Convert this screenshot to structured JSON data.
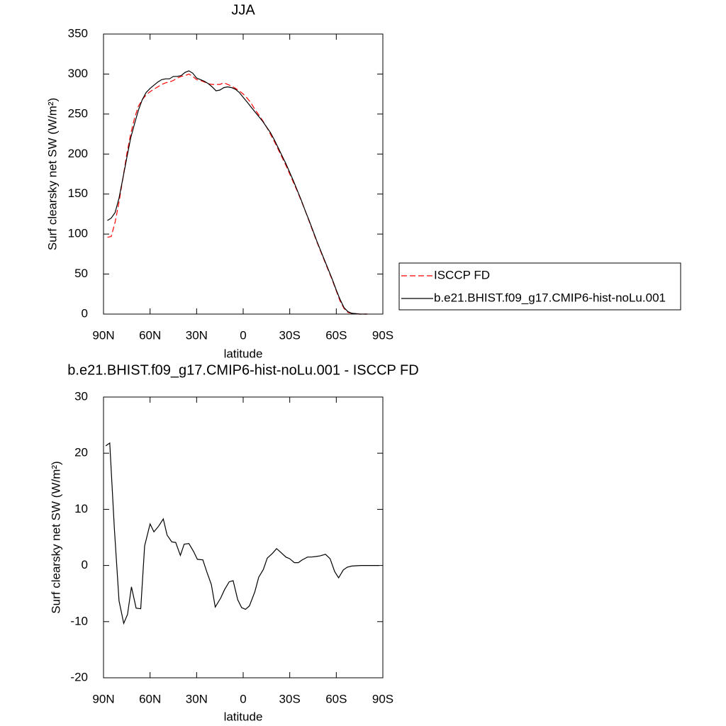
{
  "chart_data": [
    {
      "type": "line",
      "title": "JJA",
      "xlabel": "latitude",
      "ylabel": "Surf clearsky net SW (W/m²)",
      "xlim": [
        90,
        -90
      ],
      "xticks": [
        {
          "value": 90,
          "label": "90N"
        },
        {
          "value": 60,
          "label": "60N"
        },
        {
          "value": 30,
          "label": "30N"
        },
        0,
        {
          "value": -30,
          "label": "30S"
        },
        {
          "value": -60,
          "label": "60S"
        },
        {
          "value": -90,
          "label": "90S"
        }
      ],
      "ylim": [
        0,
        350
      ],
      "yticks": [
        0,
        50,
        100,
        150,
        200,
        250,
        300,
        350
      ],
      "legend": "right",
      "x": [
        87.5,
        85,
        82.5,
        80,
        77.5,
        75,
        72.5,
        70,
        67.5,
        65,
        62.5,
        60,
        57.5,
        55,
        52.5,
        50,
        47.5,
        45,
        42.5,
        40,
        37.5,
        35,
        32.5,
        30,
        27.5,
        25,
        22.5,
        20,
        17.5,
        15,
        12.5,
        10,
        7.5,
        5,
        2.5,
        0,
        -2.5,
        -5,
        -7.5,
        -10,
        -12.5,
        -15,
        -17.5,
        -20,
        -22.5,
        -25,
        -27.5,
        -30,
        -32.5,
        -35,
        -37.5,
        -40,
        -42.5,
        -45,
        -47.5,
        -50,
        -52.5,
        -55,
        -57.5,
        -60,
        -62.5,
        -65,
        -67.5,
        -70,
        -72.5,
        -75,
        -77.5,
        -80
      ],
      "series": [
        {
          "name": "ISCCP FD",
          "color": "#ff0000",
          "line_style": "dashed",
          "values": [
            96,
            97,
            115,
            140,
            170,
            200,
            225,
            245,
            260,
            268,
            274,
            278,
            281,
            284,
            287,
            289,
            290,
            292,
            295,
            297,
            298,
            300,
            297,
            293,
            292,
            290,
            288,
            287,
            287,
            287,
            289,
            287,
            285,
            282,
            279,
            275,
            270,
            264,
            256,
            249,
            242,
            234,
            225,
            216,
            206,
            196,
            186,
            175,
            164,
            153,
            141,
            129,
            116,
            103,
            90,
            78,
            66,
            54,
            42,
            29,
            16,
            7,
            2,
            1,
            0.5,
            0,
            0,
            0
          ]
        },
        {
          "name": "b.e21.BHIST.f09_g17.CMIP6-hist-noLu.001",
          "color": "#000000",
          "line_style": "solid",
          "values": [
            117,
            120,
            127,
            145,
            170,
            195,
            220,
            238,
            255,
            268,
            277,
            282,
            286,
            290,
            293,
            294,
            294,
            297,
            297,
            298,
            302,
            304,
            301,
            295,
            293,
            291,
            288,
            284,
            279,
            280,
            283,
            284,
            283,
            281,
            277,
            271,
            265,
            259,
            253,
            247,
            241,
            234,
            227,
            218,
            208,
            198,
            188,
            177,
            166,
            154,
            142,
            129,
            117,
            104,
            91,
            79,
            67,
            55,
            43,
            30,
            18,
            8,
            3,
            1,
            0.5,
            0,
            0,
            0
          ]
        }
      ]
    },
    {
      "type": "line",
      "title": "b.e21.BHIST.f09_g17.CMIP6-hist-noLu.001 - ISCCP FD",
      "xlabel": "latitude",
      "ylabel": "Surf clearsky net SW (W/m²)",
      "xlim": [
        90,
        -90
      ],
      "xticks": [
        {
          "value": 90,
          "label": "90N"
        },
        {
          "value": 60,
          "label": "60N"
        },
        {
          "value": 30,
          "label": "30N"
        },
        0,
        {
          "value": -30,
          "label": "30S"
        },
        {
          "value": -60,
          "label": "60S"
        },
        {
          "value": -90,
          "label": "90S"
        }
      ],
      "ylim": [
        -20,
        30
      ],
      "yticks": [
        -20,
        -10,
        0,
        10,
        20,
        30
      ],
      "x": [
        88.6,
        86,
        83,
        80,
        77,
        74.5,
        72,
        69,
        66,
        63.5,
        60,
        57.5,
        54.5,
        51.5,
        49,
        46,
        43.5,
        40.5,
        38,
        35,
        32,
        29.5,
        26,
        23.5,
        20.5,
        18,
        14.5,
        12,
        9,
        6.5,
        3.5,
        1,
        -1.5,
        -4,
        -7.5,
        -10,
        -13,
        -15.5,
        -19,
        -21.5,
        -24,
        -27.5,
        -30,
        -33,
        -35.5,
        -38,
        -41.5,
        -44,
        -47,
        -49.5,
        -53,
        -56,
        -59,
        -61.5,
        -64.5,
        -67,
        -70,
        -76,
        -87.5
      ],
      "series": [
        {
          "color": "#000000",
          "line_style": "solid",
          "values": [
            21.3,
            21.8,
            6.6,
            -6.3,
            -10.3,
            -8.7,
            -3.8,
            -7.6,
            -7.7,
            3.5,
            7.4,
            6.0,
            7.0,
            8.3,
            5.4,
            4.2,
            4.1,
            1.8,
            3.8,
            3.9,
            2.5,
            1.1,
            1.0,
            -1.1,
            -3.4,
            -7.4,
            -5.8,
            -4.3,
            -2.9,
            -2.7,
            -6.1,
            -7.5,
            -7.8,
            -7.2,
            -4.7,
            -2.1,
            -0.7,
            1.3,
            2.2,
            3.0,
            2.4,
            1.5,
            1.2,
            0.5,
            0.5,
            1.0,
            1.5,
            1.5,
            1.6,
            1.7,
            2.0,
            1.2,
            -1.1,
            -2.2,
            -0.8,
            -0.3,
            -0.1,
            0,
            0
          ]
        }
      ]
    }
  ]
}
